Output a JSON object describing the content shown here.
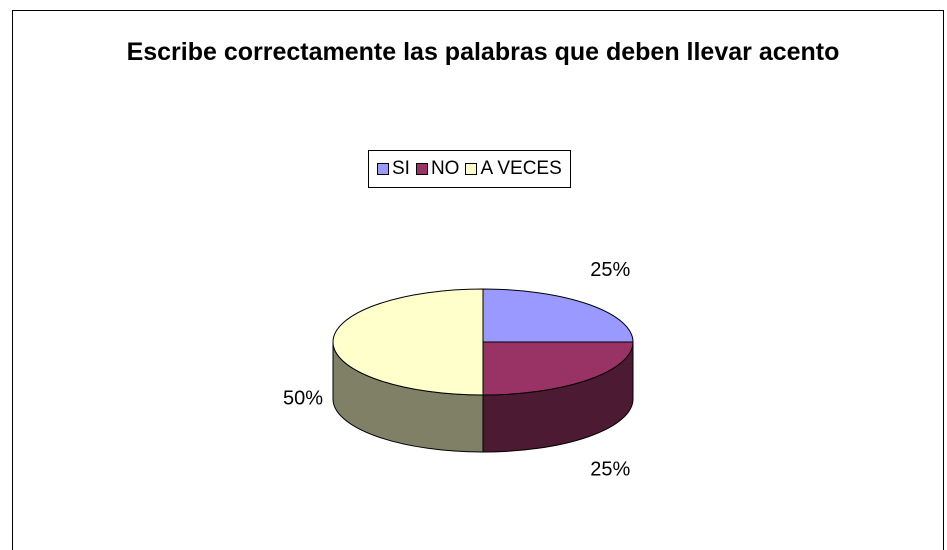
{
  "chart_data": {
    "type": "pie",
    "title": "Escribe correctamente las palabras que deben llevar acento",
    "categories": [
      "SI",
      "NO",
      "A VECES"
    ],
    "values": [
      25,
      25,
      50
    ],
    "value_labels": [
      "25%",
      "25%",
      "50%"
    ],
    "colors": [
      "#9999ff",
      "#993366",
      "#ffffcc"
    ],
    "legend": "top",
    "three_d": true
  }
}
